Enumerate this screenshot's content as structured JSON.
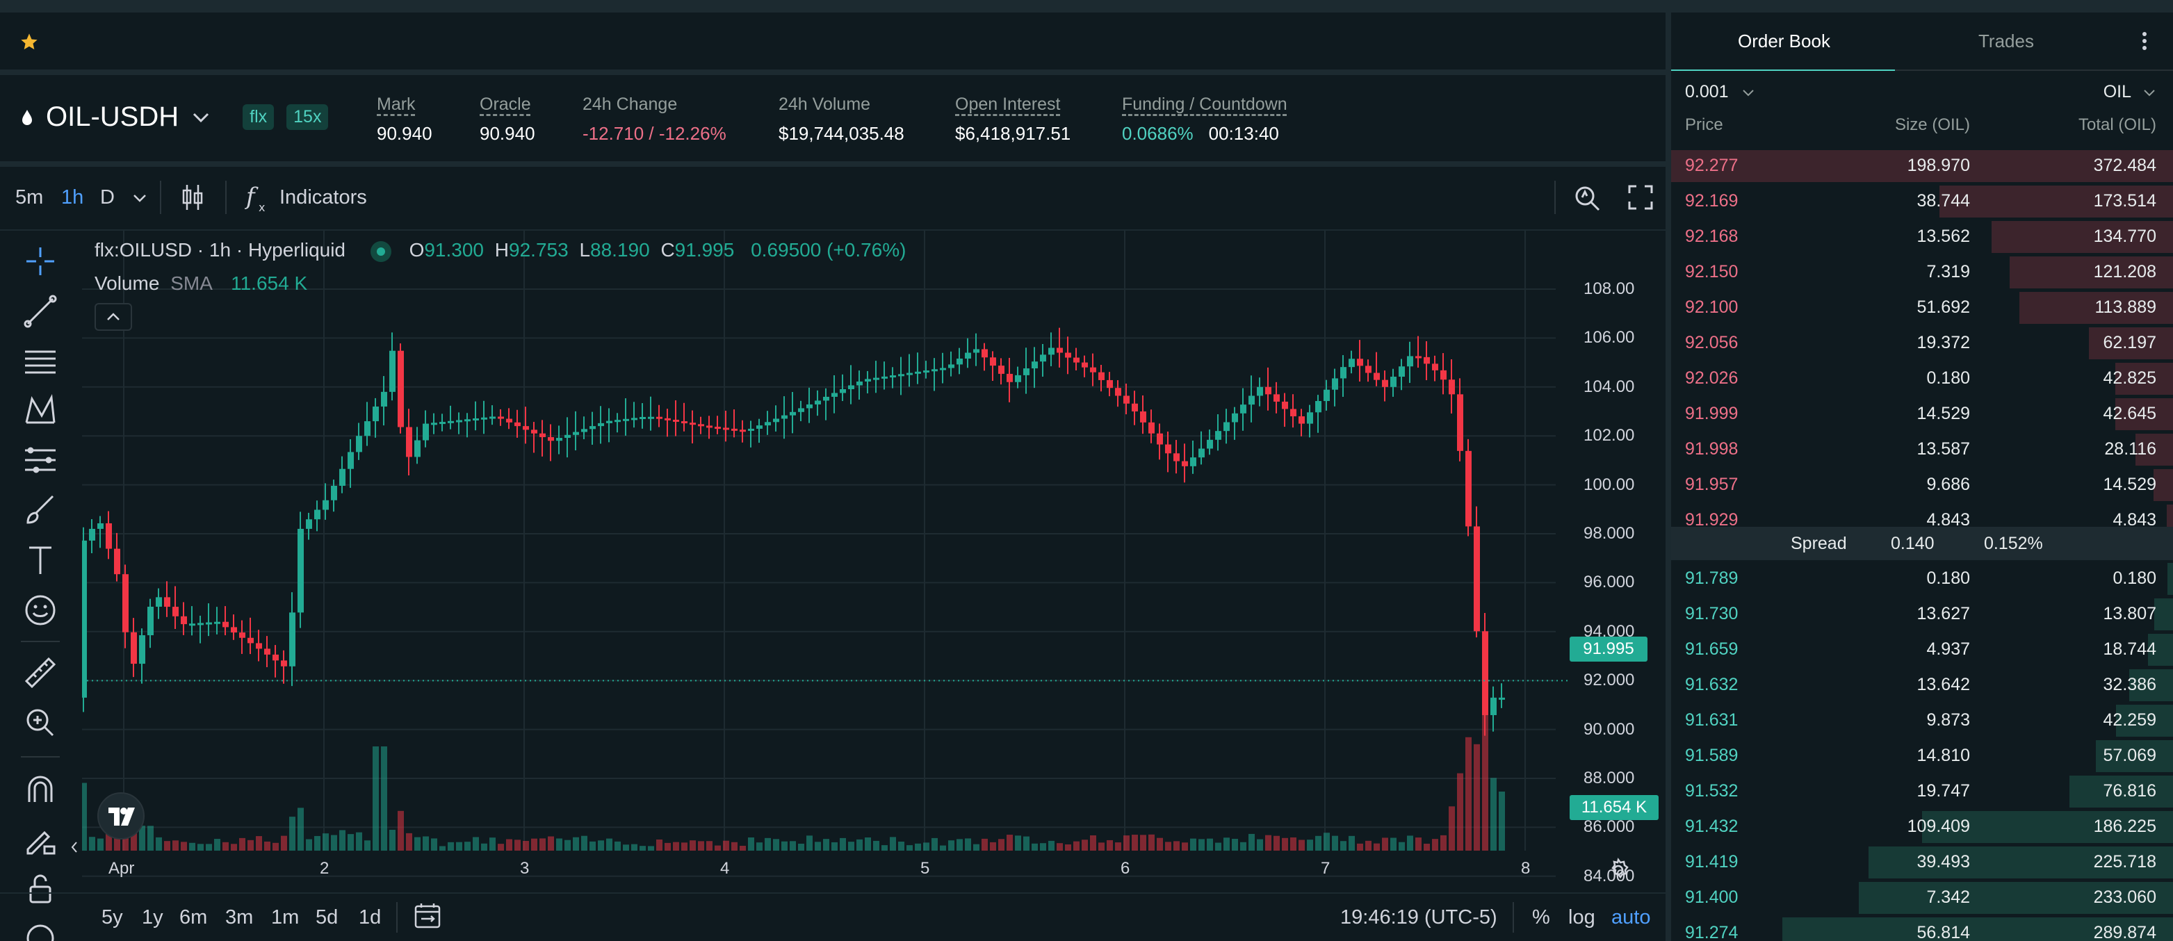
{
  "header": {
    "symbol": "OIL-USDH",
    "badges": [
      "flx",
      "15x"
    ],
    "stats": [
      {
        "label": "Mark",
        "value": "90.940",
        "underline": true
      },
      {
        "label": "Oracle",
        "value": "90.940",
        "underline": true
      },
      {
        "label": "24h Change",
        "value": "-12.710 / -12.26%",
        "underline": false
      },
      {
        "label": "24h Volume",
        "value": "$19,744,035.48",
        "underline": false
      },
      {
        "label": "Open Interest",
        "value": "$6,418,917.51",
        "underline": true
      },
      {
        "label": "Funding / Countdown",
        "value": "0.0686%",
        "value2": "00:13:40",
        "underline": true
      }
    ]
  },
  "toolbar": {
    "intervals": [
      "5m",
      "1h",
      "D"
    ],
    "active_interval": "1h",
    "indicators_label": "Indicators"
  },
  "legend": {
    "title": "flx:OILUSD · 1h · Hyperliquid",
    "o_label": "O",
    "o": "91.300",
    "h_label": "H",
    "h": "92.753",
    "l_label": "L",
    "l": "88.190",
    "c_label": "C",
    "c": "91.995",
    "change": "0.69500 (+0.76%)",
    "volume_label": "Volume",
    "sma_label": "SMA",
    "volume_value": "11.654 K"
  },
  "price_axis": [
    "108.00",
    "106.00",
    "104.00",
    "102.00",
    "100.00",
    "98.000",
    "96.000",
    "94.000",
    "92.000",
    "90.000",
    "88.000",
    "86.000",
    "84.000"
  ],
  "last_price": "91.995",
  "volume_tag": "11.654 K",
  "time_axis": [
    "Apr",
    "2",
    "3",
    "4",
    "5",
    "6",
    "7",
    "8"
  ],
  "bottom": {
    "ranges": [
      "5y",
      "1y",
      "6m",
      "3m",
      "1m",
      "5d",
      "1d"
    ],
    "clock": "19:46:19 (UTC-5)",
    "percent": "%",
    "log": "log",
    "auto": "auto"
  },
  "orderbook": {
    "tabs": [
      "Order Book",
      "Trades"
    ],
    "tick": "0.001",
    "unit": "OIL",
    "headers": {
      "price": "Price",
      "size": "Size (OIL)",
      "total": "Total (OIL)"
    },
    "asks": [
      {
        "price": "92.277",
        "size": "198.970",
        "total": "372.484"
      },
      {
        "price": "92.169",
        "size": "38.744",
        "total": "173.514"
      },
      {
        "price": "92.168",
        "size": "13.562",
        "total": "134.770"
      },
      {
        "price": "92.150",
        "size": "7.319",
        "total": "121.208"
      },
      {
        "price": "92.100",
        "size": "51.692",
        "total": "113.889"
      },
      {
        "price": "92.056",
        "size": "19.372",
        "total": "62.197"
      },
      {
        "price": "92.026",
        "size": "0.180",
        "total": "42.825"
      },
      {
        "price": "91.999",
        "size": "14.529",
        "total": "42.645"
      },
      {
        "price": "91.998",
        "size": "13.587",
        "total": "28.116"
      },
      {
        "price": "91.957",
        "size": "9.686",
        "total": "14.529"
      },
      {
        "price": "91.929",
        "size": "4.843",
        "total": "4.843"
      }
    ],
    "spread": {
      "label": "Spread",
      "value": "0.140",
      "percent": "0.152%"
    },
    "bids": [
      {
        "price": "91.789",
        "size": "0.180",
        "total": "0.180"
      },
      {
        "price": "91.730",
        "size": "13.627",
        "total": "13.807"
      },
      {
        "price": "91.659",
        "size": "4.937",
        "total": "18.744"
      },
      {
        "price": "91.632",
        "size": "13.642",
        "total": "32.386"
      },
      {
        "price": "91.631",
        "size": "9.873",
        "total": "42.259"
      },
      {
        "price": "91.589",
        "size": "14.810",
        "total": "57.069"
      },
      {
        "price": "91.532",
        "size": "19.747",
        "total": "76.816"
      },
      {
        "price": "91.432",
        "size": "109.409",
        "total": "186.225"
      },
      {
        "price": "91.419",
        "size": "39.493",
        "total": "225.718"
      },
      {
        "price": "91.400",
        "size": "7.342",
        "total": "233.060"
      },
      {
        "price": "91.274",
        "size": "56.814",
        "total": "289.874"
      }
    ]
  },
  "colors": {
    "up": "#22ab94",
    "down": "#f23645",
    "accent": "#50d2c1",
    "ask": "#ed7088"
  }
}
